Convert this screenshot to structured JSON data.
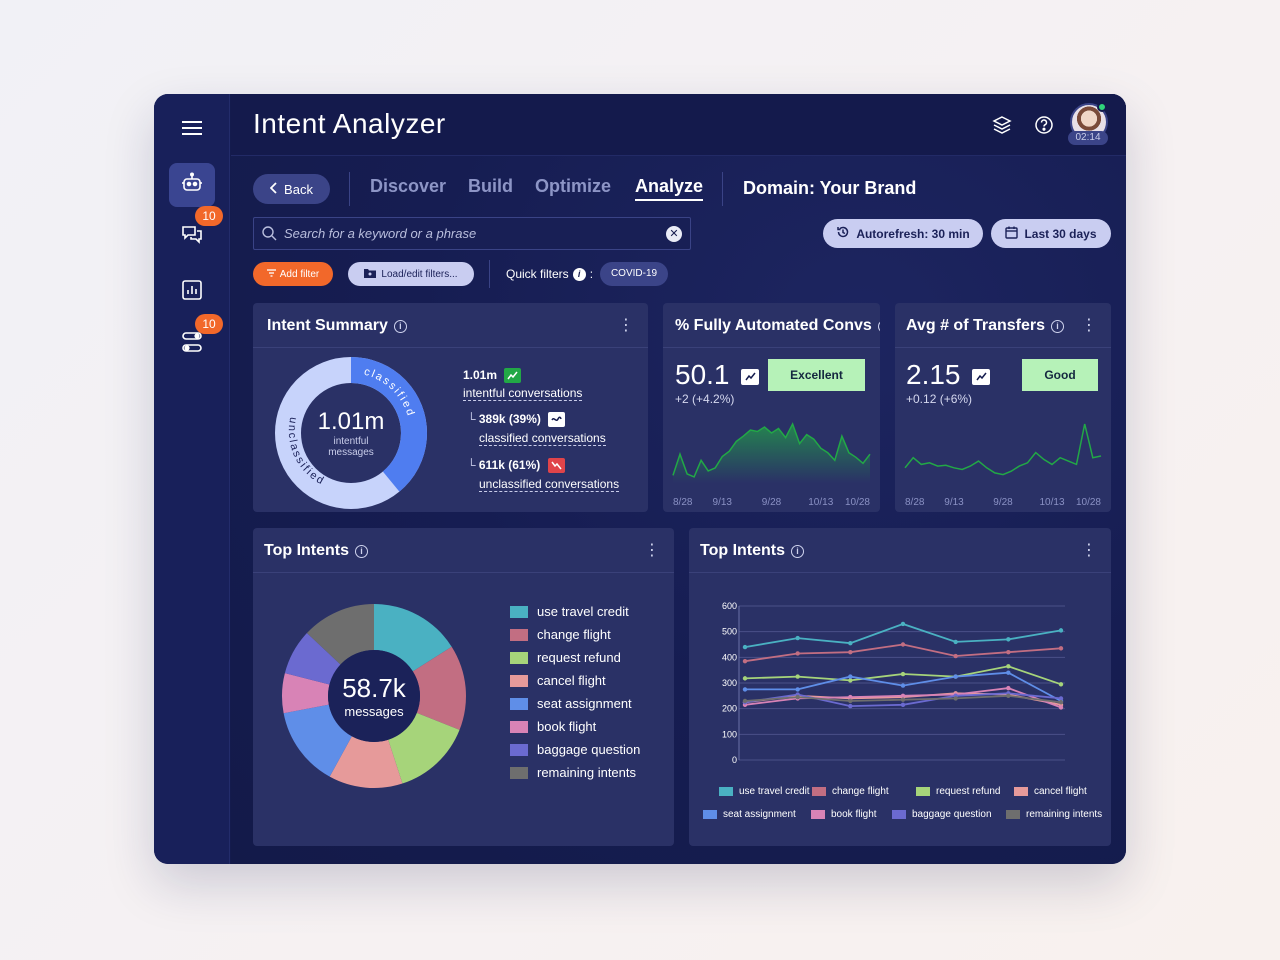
{
  "app": {
    "title": "Intent Analyzer",
    "avatar_time": "02:14"
  },
  "sidebar": {
    "items": [
      {
        "name": "bot",
        "icon": "robot-icon",
        "active": true
      },
      {
        "name": "conversations",
        "icon": "chat-icon",
        "badge": "10"
      },
      {
        "name": "reports",
        "icon": "bar-chart-icon"
      },
      {
        "name": "settings",
        "icon": "toggles-icon",
        "badge": "10"
      }
    ]
  },
  "nav": {
    "back": "Back",
    "tabs": [
      "Discover",
      "Build",
      "Optimize",
      "Analyze"
    ],
    "active_tab": "Analyze",
    "domain": "Domain: Your Brand"
  },
  "search": {
    "placeholder": "Search for a keyword or a phrase"
  },
  "controls": {
    "autorefresh": "Autorefresh: 30 min",
    "date_range": "Last 30 days"
  },
  "filters": {
    "add": "Add filter",
    "load": "Load/edit filters...",
    "quick_label": "Quick filters",
    "quick_sep": ":",
    "chip": "COVID-19"
  },
  "intent_summary": {
    "title": "Intent Summary",
    "center_value": "1.01m",
    "center_label_1": "intentful",
    "center_label_2": "messages",
    "ring_classified": "classified",
    "ring_unclassified": "unclassified",
    "total": "1.01m",
    "total_label": "intentful conversations",
    "classified": "389k (39%)",
    "classified_label": "classified conversations",
    "unclassified": "611k (61%)",
    "unclassified_label": "unclassified conversations",
    "branch_glyph": "└",
    "donut": {
      "classified_pct": 39,
      "colors": {
        "classified": "#4f7df0",
        "unclassified": "#c7d3fb"
      }
    }
  },
  "fully_automated": {
    "title": "% Fully Automated Convs",
    "value": "50.1",
    "delta": "+2 (+4.2%)",
    "rating": "Excellent",
    "chart_data": {
      "type": "area",
      "x_ticks": [
        "8/28",
        "9/13",
        "9/28",
        "10/13",
        "10/28"
      ],
      "values": [
        10,
        38,
        12,
        8,
        30,
        16,
        20,
        35,
        42,
        55,
        62,
        70,
        68,
        74,
        66,
        72,
        60,
        78,
        52,
        64,
        58,
        46,
        40,
        30,
        62,
        40,
        34,
        26,
        38
      ],
      "color": "#22a846"
    }
  },
  "avg_transfers": {
    "title": "Avg # of Transfers",
    "value": "2.15",
    "delta": "+0.12 (+6%)",
    "rating": "Good",
    "chart_data": {
      "type": "line",
      "x_ticks": [
        "8/28",
        "9/13",
        "9/28",
        "10/13",
        "10/28"
      ],
      "values": [
        18,
        30,
        22,
        24,
        20,
        21,
        18,
        16,
        20,
        26,
        18,
        12,
        10,
        14,
        20,
        24,
        36,
        28,
        22,
        30,
        26,
        22,
        70,
        30,
        32
      ],
      "color": "#22a846"
    }
  },
  "top_intents_pie": {
    "title": "Top Intents",
    "center_value": "58.7k",
    "center_label": "messages",
    "chart_data": {
      "type": "pie",
      "categories": [
        "use travel credit",
        "change flight",
        "request refund",
        "cancel flight",
        "seat assignment",
        "book flight",
        "baggage question",
        "remaining intents"
      ],
      "values": [
        16,
        15,
        14,
        13,
        14,
        7,
        8,
        13
      ],
      "colors": [
        "#4ab1c2",
        "#c26e82",
        "#a6d47a",
        "#e69a9a",
        "#5f8ee8",
        "#d883b6",
        "#6b6ad0",
        "#6e6e6e"
      ]
    }
  },
  "top_intents_line": {
    "title": "Top Intents",
    "chart_data": {
      "type": "line",
      "x": [
        1,
        2,
        3,
        4,
        5,
        6,
        7
      ],
      "ylim": [
        0,
        600
      ],
      "y_ticks": [
        0,
        100,
        200,
        300,
        400,
        500,
        600
      ],
      "series": [
        {
          "name": "use travel credit",
          "color": "#4ab1c2",
          "values": [
            440,
            475,
            455,
            530,
            460,
            470,
            505
          ]
        },
        {
          "name": "change flight",
          "color": "#c26e82",
          "values": [
            385,
            415,
            420,
            450,
            405,
            420,
            435
          ]
        },
        {
          "name": "request refund",
          "color": "#a6d47a",
          "values": [
            318,
            325,
            310,
            335,
            325,
            365,
            295
          ]
        },
        {
          "name": "cancel flight",
          "color": "#e69a9a",
          "values": [
            225,
            250,
            240,
            245,
            260,
            255,
            215
          ]
        },
        {
          "name": "seat assignment",
          "color": "#5f8ee8",
          "values": [
            275,
            275,
            325,
            290,
            325,
            340,
            230
          ]
        },
        {
          "name": "book flight",
          "color": "#d883b6",
          "values": [
            215,
            240,
            245,
            250,
            255,
            280,
            205
          ]
        },
        {
          "name": "baggage question",
          "color": "#6b6ad0",
          "values": [
            225,
            255,
            210,
            215,
            250,
            260,
            240
          ]
        },
        {
          "name": "remaining intents",
          "color": "#6e6e6e",
          "values": [
            230,
            245,
            230,
            235,
            240,
            250,
            225
          ]
        }
      ]
    }
  }
}
